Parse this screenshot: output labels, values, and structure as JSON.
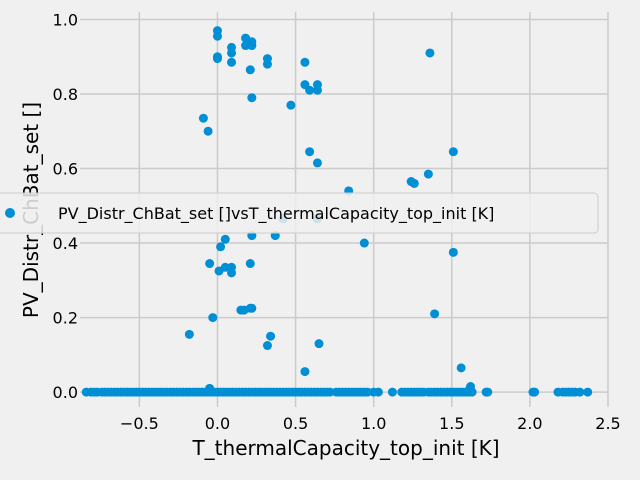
{
  "chart_data": {
    "type": "scatter",
    "title": "",
    "xlabel": "T_thermalCapacity_top_init [K]",
    "ylabel": "PV_Distr_ChBat_set []",
    "xlim": [
      -0.88,
      2.5
    ],
    "ylim": [
      -0.04,
      1.02
    ],
    "xticks": [
      -0.5,
      0.0,
      0.5,
      1.0,
      1.5,
      2.0,
      2.5
    ],
    "xtick_labels": [
      "−0.5",
      "0.0",
      "0.5",
      "1.0",
      "1.5",
      "2.0",
      "2.5"
    ],
    "yticks": [
      0.0,
      0.2,
      0.4,
      0.6,
      0.8,
      1.0
    ],
    "ytick_labels": [
      "0.0",
      "0.2",
      "0.4",
      "0.6",
      "0.8",
      "1.0"
    ],
    "grid": true,
    "legend_position": "center",
    "color": "#008fd5",
    "series": [
      {
        "name": "PV_Distr_ChBat_set []vsT_thermalCapacity_top_init [K]",
        "points": [
          [
            0.0,
            0.97
          ],
          [
            0.0,
            0.955
          ],
          [
            0.18,
            0.95
          ],
          [
            0.22,
            0.94
          ],
          [
            0.18,
            0.93
          ],
          [
            0.22,
            0.93
          ],
          [
            0.09,
            0.925
          ],
          [
            0.09,
            0.91
          ],
          [
            0.0,
            0.9
          ],
          [
            0.0,
            0.895
          ],
          [
            0.32,
            0.895
          ],
          [
            0.32,
            0.88
          ],
          [
            0.09,
            0.885
          ],
          [
            0.56,
            0.885
          ],
          [
            1.36,
            0.91
          ],
          [
            0.21,
            0.865
          ],
          [
            0.64,
            0.825
          ],
          [
            0.56,
            0.825
          ],
          [
            0.59,
            0.81
          ],
          [
            0.64,
            0.81
          ],
          [
            0.22,
            0.79
          ],
          [
            0.47,
            0.77
          ],
          [
            -0.09,
            0.735
          ],
          [
            -0.06,
            0.7
          ],
          [
            0.59,
            0.645
          ],
          [
            1.51,
            0.645
          ],
          [
            0.64,
            0.615
          ],
          [
            1.35,
            0.585
          ],
          [
            1.24,
            0.565
          ],
          [
            1.26,
            0.56
          ],
          [
            0.84,
            0.54
          ],
          [
            0.64,
            0.465
          ],
          [
            0.42,
            0.465
          ],
          [
            0.22,
            0.42
          ],
          [
            0.37,
            0.42
          ],
          [
            0.05,
            0.41
          ],
          [
            0.02,
            0.39
          ],
          [
            0.94,
            0.4
          ],
          [
            1.51,
            0.375
          ],
          [
            -0.05,
            0.345
          ],
          [
            0.21,
            0.345
          ],
          [
            0.05,
            0.335
          ],
          [
            0.09,
            0.335
          ],
          [
            0.01,
            0.325
          ],
          [
            0.09,
            0.32
          ],
          [
            0.21,
            0.225
          ],
          [
            0.22,
            0.225
          ],
          [
            0.17,
            0.22
          ],
          [
            0.15,
            0.22
          ],
          [
            -0.03,
            0.2
          ],
          [
            1.39,
            0.21
          ],
          [
            -0.18,
            0.155
          ],
          [
            0.34,
            0.15
          ],
          [
            0.32,
            0.125
          ],
          [
            0.65,
            0.13
          ],
          [
            1.56,
            0.065
          ],
          [
            0.56,
            0.055
          ],
          [
            1.62,
            0.015
          ],
          [
            -0.05,
            0.01
          ],
          [
            1.61,
            0.005
          ]
        ],
        "zero_values_x": [
          -0.84,
          -0.81,
          -0.79,
          -0.77,
          -0.74,
          -0.72,
          -0.7,
          -0.68,
          -0.66,
          -0.64,
          -0.62,
          -0.6,
          -0.58,
          -0.56,
          -0.54,
          -0.52,
          -0.5,
          -0.48,
          -0.46,
          -0.44,
          -0.42,
          -0.4,
          -0.38,
          -0.36,
          -0.34,
          -0.32,
          -0.3,
          -0.28,
          -0.26,
          -0.24,
          -0.22,
          -0.2,
          -0.18,
          -0.16,
          -0.14,
          -0.12,
          -0.1,
          -0.08,
          -0.06,
          -0.04,
          -0.02,
          0.0,
          0.02,
          0.04,
          0.06,
          0.08,
          0.1,
          0.12,
          0.14,
          0.16,
          0.18,
          0.2,
          0.22,
          0.24,
          0.26,
          0.28,
          0.3,
          0.32,
          0.34,
          0.36,
          0.38,
          0.4,
          0.42,
          0.44,
          0.46,
          0.48,
          0.5,
          0.52,
          0.54,
          0.56,
          0.58,
          0.6,
          0.62,
          0.64,
          0.66,
          0.68,
          0.7,
          0.72,
          0.76,
          0.78,
          0.8,
          0.82,
          0.84,
          0.86,
          0.88,
          0.9,
          0.92,
          0.94,
          0.96,
          1.0,
          1.03,
          1.12,
          1.18,
          1.2,
          1.22,
          1.24,
          1.26,
          1.28,
          1.3,
          1.32,
          1.35,
          1.37,
          1.39,
          1.41,
          1.43,
          1.45,
          1.47,
          1.49,
          1.51,
          1.53,
          1.55,
          1.57,
          1.59,
          1.61,
          1.63,
          1.72,
          1.73,
          2.02,
          2.03,
          2.18,
          2.21,
          2.23,
          2.25,
          2.27,
          2.29,
          2.32,
          2.37
        ]
      }
    ]
  }
}
